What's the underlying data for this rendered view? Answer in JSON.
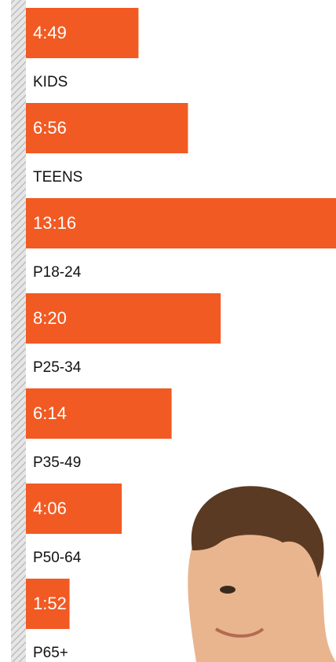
{
  "chart_data": {
    "type": "bar",
    "orientation": "horizontal",
    "categories": [
      "KIDS",
      "TEENS",
      "P18-24",
      "P25-34",
      "P35-49",
      "P50-64",
      "P65+"
    ],
    "values": [
      289,
      416,
      796,
      500,
      374,
      246,
      112
    ],
    "value_labels": [
      "4:49",
      "6:56",
      "13:16",
      "8:20",
      "6:14",
      "4:06",
      "1:52"
    ],
    "color": "#f15a22"
  }
}
